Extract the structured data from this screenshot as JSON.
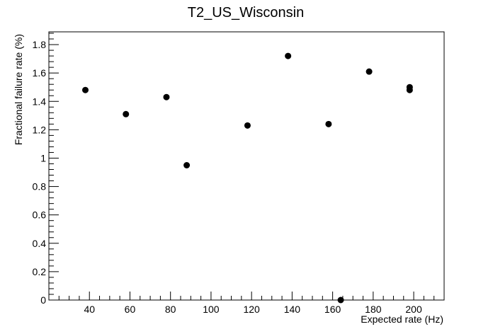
{
  "chart_data": {
    "type": "scatter",
    "title": "T2_US_Wisconsin",
    "xlabel": "Expected rate (Hz)",
    "ylabel": "Fractional failure rate (%)",
    "xlim": [
      20,
      215
    ],
    "ylim": [
      0,
      1.89
    ],
    "x_ticks": [
      40,
      60,
      80,
      100,
      120,
      140,
      160,
      180,
      200
    ],
    "y_ticks": [
      0,
      0.2,
      0.4,
      0.6,
      0.8,
      1,
      1.2,
      1.4,
      1.6,
      1.8
    ],
    "x_tick_labels": [
      "40",
      "60",
      "80",
      "100",
      "120",
      "140",
      "160",
      "180",
      "200"
    ],
    "y_tick_labels": [
      "0",
      "0.2",
      "0.4",
      "0.6",
      "0.8",
      "1",
      "1.2",
      "1.4",
      "1.6",
      "1.8"
    ],
    "grid": false,
    "legend": "none",
    "marker_color": "#000000",
    "points": [
      {
        "x": 38,
        "y": 1.48
      },
      {
        "x": 58,
        "y": 1.31
      },
      {
        "x": 78,
        "y": 1.43
      },
      {
        "x": 88,
        "y": 0.95
      },
      {
        "x": 118,
        "y": 1.23
      },
      {
        "x": 138,
        "y": 1.72
      },
      {
        "x": 158,
        "y": 1.24
      },
      {
        "x": 164,
        "y": 0.0
      },
      {
        "x": 178,
        "y": 1.61
      },
      {
        "x": 198,
        "y": 1.5
      },
      {
        "x": 198,
        "y": 1.48
      }
    ]
  }
}
